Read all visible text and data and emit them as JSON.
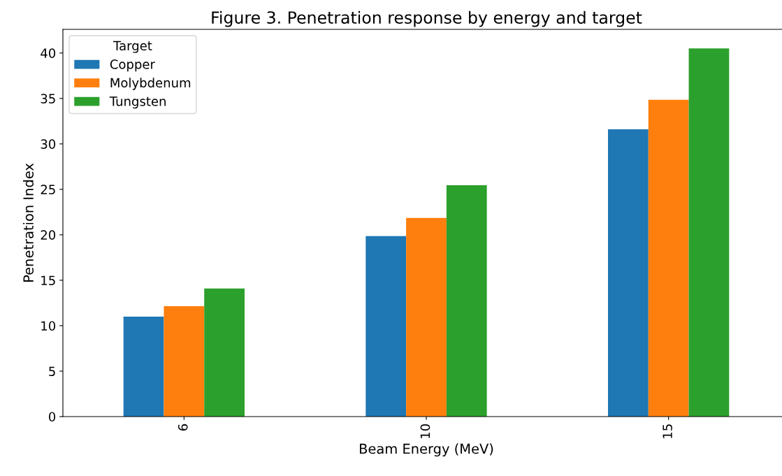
{
  "chart_data": {
    "type": "bar",
    "title": "Figure 3. Penetration response by energy and target",
    "xlabel": "Beam Energy (MeV)",
    "ylabel": "Penetration Index",
    "categories": [
      "6",
      "10",
      "15"
    ],
    "series": [
      {
        "name": "Copper",
        "color": "#1f77b4",
        "values": [
          11.0,
          19.85,
          31.6
        ]
      },
      {
        "name": "Molybdenum",
        "color": "#ff7f0e",
        "values": [
          12.15,
          21.85,
          34.85
        ]
      },
      {
        "name": "Tungsten",
        "color": "#2ca02c",
        "values": [
          14.1,
          25.45,
          40.5
        ]
      }
    ],
    "legend_title": "Target",
    "legend": "top left",
    "grid": false,
    "ylim": [
      0,
      42.6
    ],
    "yticks": [
      0,
      5,
      10,
      15,
      20,
      25,
      30,
      35,
      40
    ]
  }
}
